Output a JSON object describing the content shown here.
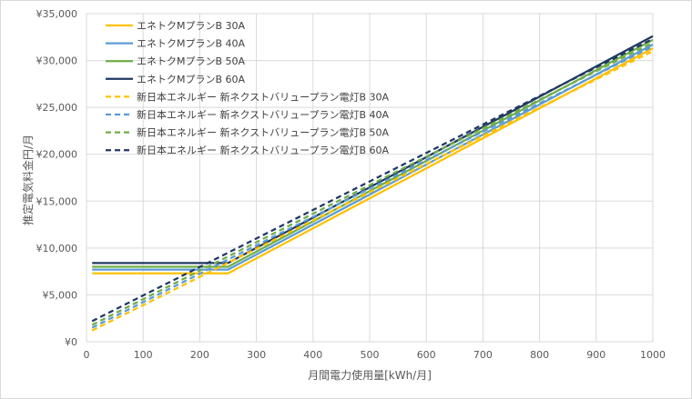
{
  "chart_data": {
    "type": "line",
    "title": "",
    "xlabel": "月間電力使用量[kWh/月]",
    "ylabel": "推定電気料金円/月",
    "xlim": [
      0,
      1000
    ],
    "ylim": [
      0,
      35000
    ],
    "x_ticks": [
      0,
      100,
      200,
      300,
      400,
      500,
      600,
      700,
      800,
      900,
      1000
    ],
    "y_ticks": [
      0,
      5000,
      10000,
      15000,
      20000,
      25000,
      30000,
      35000
    ],
    "y_tick_labels": [
      "¥0",
      "¥5,000",
      "¥10,000",
      "¥15,000",
      "¥20,000",
      "¥25,000",
      "¥30,000",
      "¥35,000"
    ],
    "grid": "horizontal and vertical",
    "legend_position": "top-left",
    "series": [
      {
        "name": "エネトクMプランB 30A",
        "color": "#FFC000",
        "dash": "solid",
        "x": [
          10,
          250,
          1000
        ],
        "y": [
          7300,
          7300,
          31300
        ]
      },
      {
        "name": "エネトクMプランB 40A",
        "color": "#5B9BD5",
        "dash": "solid",
        "x": [
          10,
          250,
          1000
        ],
        "y": [
          7700,
          7700,
          31700
        ]
      },
      {
        "name": "エネトクMプランB 50A",
        "color": "#70AD47",
        "dash": "solid",
        "x": [
          10,
          250,
          1000
        ],
        "y": [
          8000,
          8000,
          32200
        ]
      },
      {
        "name": "エネトクMプランB 60A",
        "color": "#203864",
        "dash": "solid",
        "x": [
          10,
          250,
          1000
        ],
        "y": [
          8400,
          8400,
          32600
        ]
      },
      {
        "name": "新日本エネルギー 新ネクストバリュープラン電灯B 30A",
        "color": "#FFC000",
        "dash": "dashed",
        "x": [
          10,
          1000
        ],
        "y": [
          1200,
          31000
        ]
      },
      {
        "name": "新日本エネルギー 新ネクストバリュープラン電灯B 40A",
        "color": "#5B9BD5",
        "dash": "dashed",
        "x": [
          10,
          1000
        ],
        "y": [
          1500,
          31500
        ]
      },
      {
        "name": "新日本エネルギー 新ネクストバリュープラン電灯B 50A",
        "color": "#70AD47",
        "dash": "dashed",
        "x": [
          10,
          1000
        ],
        "y": [
          1800,
          31900
        ]
      },
      {
        "name": "新日本エネルギー 新ネクストバリュープラン電灯B 60A",
        "color": "#203864",
        "dash": "dashed",
        "x": [
          10,
          1000
        ],
        "y": [
          2200,
          32300
        ]
      }
    ]
  }
}
